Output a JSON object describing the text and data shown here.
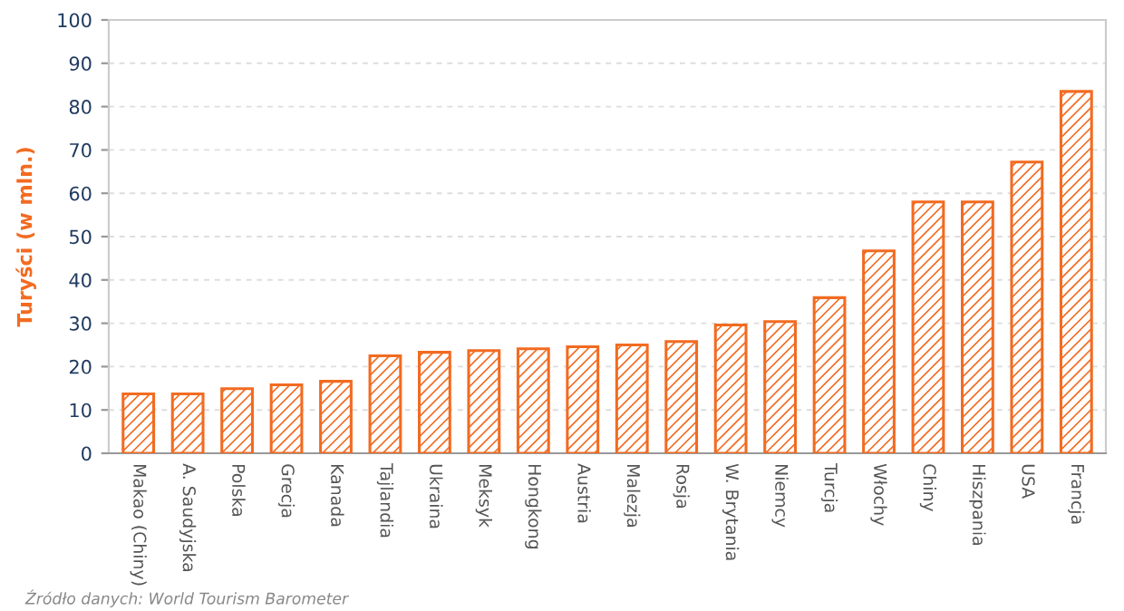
{
  "chart_data": {
    "type": "bar",
    "ylabel": "Turyści (w mln.)",
    "categories": [
      "Makao (Chiny)",
      "A. Saudyjska",
      "Polska",
      "Grecja",
      "Kanada",
      "Tajlandia",
      "Ukraina",
      "Meksyk",
      "Hongkong",
      "Austria",
      "Malezja",
      "Rosja",
      "W. Brytania",
      "Niemcy",
      "Turcja",
      "Włochy",
      "Chiny",
      "Hiszpania",
      "USA",
      "Francja"
    ],
    "values": [
      13.7,
      13.7,
      14.9,
      15.8,
      16.6,
      22.5,
      23.3,
      23.7,
      24.1,
      24.6,
      25.0,
      25.8,
      29.6,
      30.4,
      35.9,
      46.7,
      58.0,
      58.0,
      67.2,
      83.5
    ],
    "color": "#f26b21",
    "ylim": [
      0,
      100
    ],
    "yticks": [
      0,
      10,
      20,
      30,
      40,
      50,
      60,
      70,
      80,
      90,
      100
    ],
    "grid": "y",
    "annotations": [
      "Źródło danych: World Tourism Barometer"
    ]
  }
}
